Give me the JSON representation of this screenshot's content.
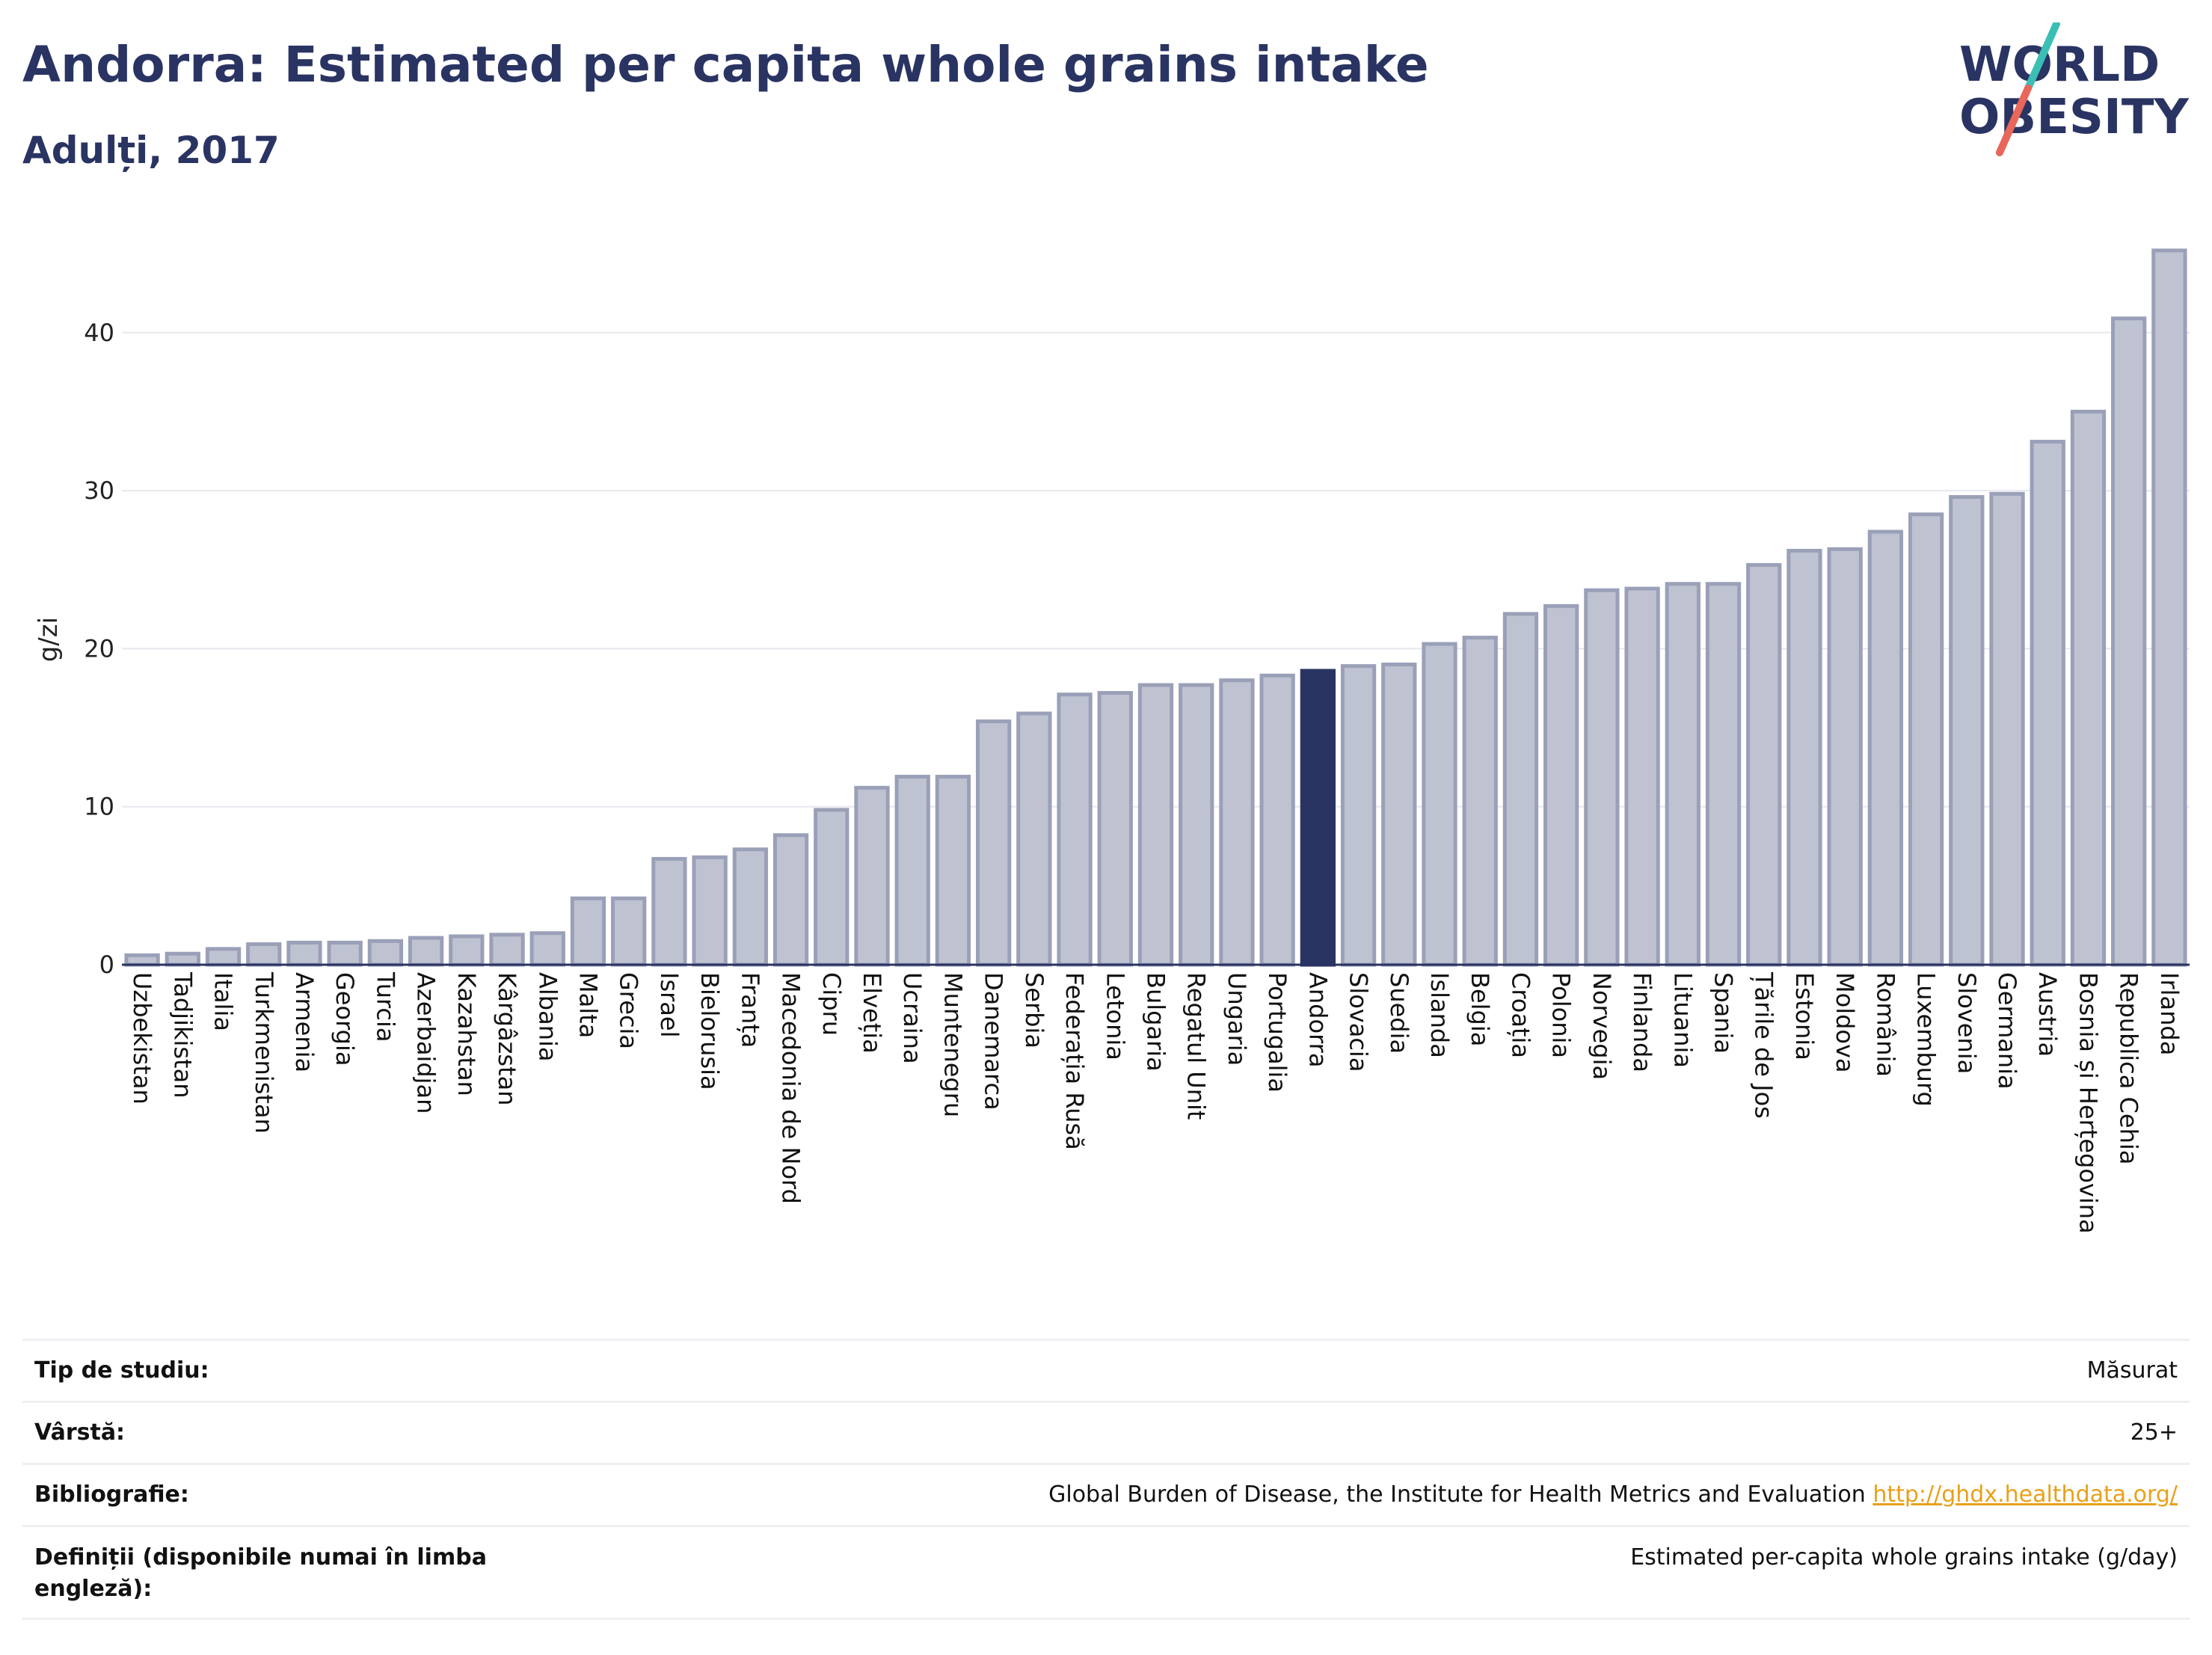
{
  "title": "Andorra: Estimated per capita whole grains intake",
  "subtitle": "Adulți, 2017",
  "logo": {
    "line1": "WORLD",
    "line2": "OBESITY"
  },
  "colors": {
    "highlight": "#2a3463",
    "bar_fill": "#bfc3d1",
    "bar_stroke": "#9aa0b8",
    "logo_teal": "#3bbfb5",
    "logo_red": "#e8665a"
  },
  "chart_data": {
    "type": "bar",
    "ylabel": "g/zi",
    "xlabel": "",
    "ylim": [
      0,
      46
    ],
    "yticks": [
      0,
      10,
      20,
      30,
      40
    ],
    "grid": true,
    "highlight": "Andorra",
    "categories": [
      "Uzbekistan",
      "Tadjikistan",
      "Italia",
      "Turkmenistan",
      "Armenia",
      "Georgia",
      "Turcia",
      "Azerbaidjan",
      "Kazahstan",
      "Kârgâzstan",
      "Albania",
      "Malta",
      "Grecia",
      "Israel",
      "Bielorusia",
      "Franța",
      "Macedonia de Nord",
      "Cipru",
      "Elveția",
      "Ucraina",
      "Muntenegru",
      "Danemarca",
      "Serbia",
      "Federația Rusă",
      "Letonia",
      "Bulgaria",
      "Regatul Unit",
      "Ungaria",
      "Portugalia",
      "Andorra",
      "Slovacia",
      "Suedia",
      "Islanda",
      "Belgia",
      "Croația",
      "Polonia",
      "Norvegia",
      "Finlanda",
      "Lituania",
      "Spania",
      "Țările de Jos",
      "Estonia",
      "Moldova",
      "România",
      "Luxemburg",
      "Slovenia",
      "Germania",
      "Austria",
      "Bosnia și Herțegovina",
      "Republica Cehia",
      "Irlanda"
    ],
    "values": [
      0.6,
      0.7,
      1.0,
      1.3,
      1.4,
      1.4,
      1.5,
      1.7,
      1.8,
      1.9,
      2.0,
      4.2,
      4.2,
      6.7,
      6.8,
      7.3,
      8.2,
      9.8,
      11.2,
      11.9,
      11.9,
      15.4,
      15.9,
      17.1,
      17.2,
      17.7,
      17.7,
      18.0,
      18.3,
      18.6,
      18.9,
      19.0,
      20.3,
      20.7,
      22.2,
      22.7,
      23.7,
      23.8,
      24.1,
      24.1,
      25.3,
      26.2,
      26.3,
      27.4,
      28.5,
      29.6,
      29.8,
      33.1,
      35.0,
      40.9,
      45.2
    ]
  },
  "info": {
    "study_type": {
      "label": "Tip de studiu:",
      "value": "Măsurat"
    },
    "age": {
      "label": "Vârstă:",
      "value": "25+"
    },
    "bibliography": {
      "label": "Bibliografie:",
      "value": "Global Burden of Disease, the Institute for Health Metrics and Evaluation",
      "link": "http://ghdx.healthdata.org/"
    },
    "definitions": {
      "label": "Definiții (disponibile numai în limba engleză):",
      "value": "Estimated per-capita whole grains intake (g/day)"
    }
  }
}
